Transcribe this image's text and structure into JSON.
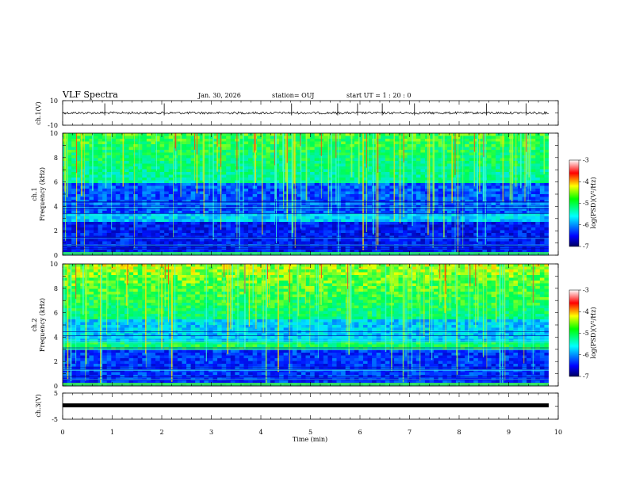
{
  "header": {
    "title": "VLF Spectra",
    "date": "Jan. 30, 2026",
    "station": "station= OUJ",
    "start_ut": "start  UT =  1 : 20 : 0"
  },
  "chart_data": [
    {
      "type": "line",
      "panel": "ch1-waveform",
      "ylabel": "ch.1(V)",
      "ylim": [
        -10,
        10
      ],
      "yticks": [
        "10",
        "-10"
      ],
      "xlim": [
        0,
        10
      ],
      "baseline": 0,
      "spikes_at_min": [
        0.85,
        2.05,
        4.62,
        5.55,
        5.95,
        6.45,
        7.1,
        8.55,
        9.35
      ]
    },
    {
      "type": "heatmap",
      "panel": "ch1-spectrogram",
      "ylabel_line1": "ch.1",
      "ylabel_line2": "Frequency (kHz)",
      "ylim": [
        0,
        10
      ],
      "yticks": [
        "0",
        "2",
        "4",
        "6",
        "8",
        "10"
      ],
      "xlim": [
        0,
        10
      ],
      "colorbar": {
        "label": "log(PSD)(V²/Hz)",
        "range": [
          -7,
          -3
        ],
        "ticks": [
          "-3",
          "-4",
          "-5",
          "-6",
          "-7"
        ]
      }
    },
    {
      "type": "heatmap",
      "panel": "ch2-spectrogram",
      "ylabel_line1": "ch.2",
      "ylabel_line2": "Frequency (kHz)",
      "ylim": [
        0,
        10
      ],
      "yticks": [
        "0",
        "2",
        "4",
        "6",
        "8",
        "10"
      ],
      "xlim": [
        0,
        10
      ],
      "colorbar": {
        "label": "log(PSD)(V²/Hz)",
        "range": [
          -7,
          -3
        ],
        "ticks": [
          "-3",
          "-4",
          "-5",
          "-6",
          "-7"
        ]
      }
    },
    {
      "type": "line",
      "panel": "ch3-waveform",
      "ylabel": "ch.3(V)",
      "ylim": [
        -5,
        5
      ],
      "yticks": [
        "5",
        "-5"
      ],
      "xlim": [
        0,
        10
      ],
      "level": -0.5
    }
  ],
  "xaxis": {
    "label": "Time (min)",
    "ticks": [
      "0",
      "1",
      "2",
      "3",
      "4",
      "5",
      "6",
      "7",
      "8",
      "9",
      "10"
    ]
  },
  "colors": {
    "colormap": [
      "#00008b",
      "#0000ff",
      "#00ffff",
      "#00ff00",
      "#ffff00",
      "#ff0000",
      "#ffffff"
    ],
    "trace": "#000000"
  }
}
